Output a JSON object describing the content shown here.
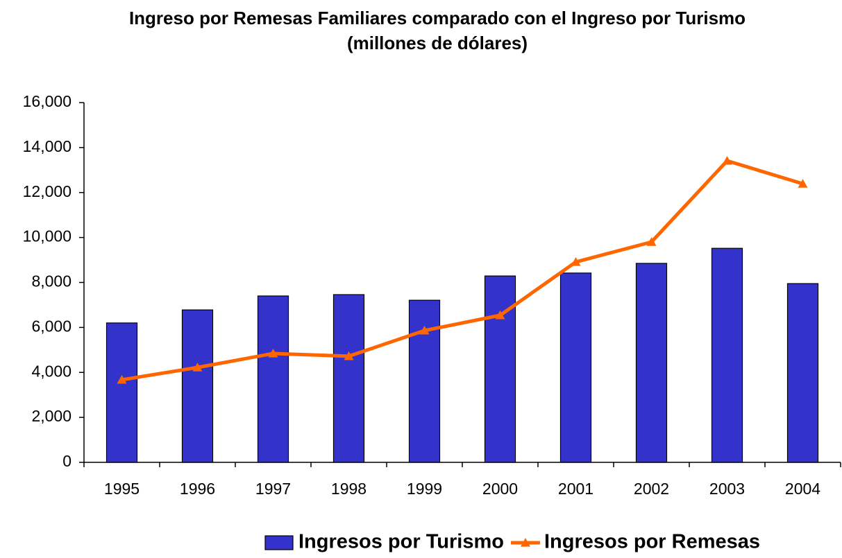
{
  "chart_data": {
    "type": "bar_line",
    "title": "Ingreso por Remesas Familiares comparado con el Ingreso por Turismo",
    "subtitle": "(millones de dólares)",
    "categories": [
      "1995",
      "1996",
      "1997",
      "1998",
      "1999",
      "2000",
      "2001",
      "2002",
      "2003",
      "2004"
    ],
    "series": [
      {
        "name": "Ingresos por Turismo",
        "type": "bar",
        "color": "#3333cc",
        "values": [
          6200,
          6780,
          7400,
          7460,
          7210,
          8290,
          8420,
          8850,
          9520,
          7950
        ]
      },
      {
        "name": "Ingresos por Remesas",
        "type": "line",
        "color": "#ff6600",
        "values": [
          3670,
          4220,
          4840,
          4720,
          5860,
          6540,
          8910,
          9800,
          13410,
          12390
        ]
      }
    ],
    "ylim": [
      0,
      16000
    ],
    "yticks": [
      0,
      {
        "value": 2000,
        "label": "2,000"
      },
      {
        "value": 4000,
        "label": "4,000"
      },
      {
        "value": 6000,
        "label": "6,000"
      },
      {
        "value": 8000,
        "label": "8,000"
      },
      {
        "value": 10000,
        "label": "10,000"
      },
      {
        "value": 12000,
        "label": "12,000"
      },
      {
        "value": 14000,
        "label": "14,000"
      },
      {
        "value": 16000,
        "label": "16,000"
      }
    ],
    "grid": false,
    "legend": "bottom"
  }
}
